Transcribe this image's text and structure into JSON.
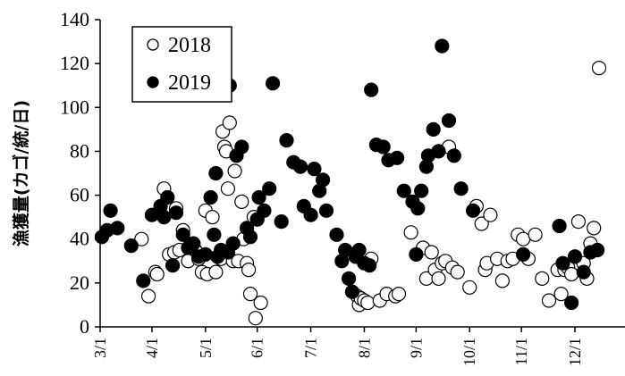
{
  "chart_data": {
    "type": "scatter",
    "title": "",
    "xlabel": "",
    "ylabel": "漁獲量(カゴ/統/日)",
    "ylim": [
      0,
      140
    ],
    "xlim": [
      "3/1",
      "12/30"
    ],
    "yticks": [
      "0",
      "20",
      "40",
      "60",
      "80",
      "100",
      "120",
      "140"
    ],
    "xticks": [
      "3/1",
      "4/1",
      "5/1",
      "6/1",
      "7/1",
      "8/1",
      "9/1",
      "10/1",
      "11/1",
      "12/1"
    ],
    "grid": false,
    "legend_position": "top-left",
    "colors": {
      "2018": "#ffffff",
      "2019": "#000000",
      "stroke": "#000000"
    },
    "series": [
      {
        "name": "2018",
        "marker": "open-circle",
        "x": [
          "3/25",
          "3/29",
          "4/3",
          "4/4",
          "4/8",
          "4/11",
          "4/14",
          "4/15",
          "4/17",
          "4/19",
          "4/22",
          "4/26",
          "4/28",
          "4/30",
          "5/1",
          "5/2",
          "5/5",
          "5/7",
          "5/10",
          "5/11",
          "5/12",
          "5/13",
          "5/14",
          "5/15",
          "5/17",
          "5/18",
          "5/20",
          "5/22",
          "5/23",
          "5/25",
          "5/26",
          "5/27",
          "5/29",
          "5/30",
          "5/31",
          "6/3",
          "7/28",
          "7/29",
          "7/30",
          "8/1",
          "8/3",
          "8/5",
          "8/10",
          "8/14",
          "8/19",
          "8/21",
          "8/28",
          "9/5",
          "9/7",
          "9/10",
          "9/12",
          "9/14",
          "9/16",
          "9/18",
          "9/20",
          "9/22",
          "9/25",
          "10/1",
          "10/5",
          "10/8",
          "10/10",
          "10/11",
          "10/13",
          "10/17",
          "10/20",
          "10/23",
          "10/26",
          "10/29",
          "11/2",
          "11/5",
          "11/9",
          "11/13",
          "11/17",
          "11/22",
          "11/24",
          "11/26",
          "11/28",
          "11/30",
          "12/1",
          "12/3",
          "12/6",
          "12/8",
          "12/10",
          "12/12",
          "12/15"
        ],
        "y": [
          40,
          14,
          25,
          24,
          63,
          33,
          34,
          54,
          35,
          44,
          30,
          35,
          31,
          25,
          53,
          24,
          50,
          25,
          31,
          89,
          82,
          80,
          63,
          93,
          30,
          71,
          30,
          57,
          40,
          29,
          26,
          15,
          50,
          4,
          49,
          11,
          14,
          10,
          13,
          12,
          11,
          31,
          12,
          15,
          14,
          15,
          43,
          36,
          22,
          34,
          26,
          22,
          29,
          30,
          82,
          27,
          25,
          18,
          55,
          47,
          26,
          29,
          51,
          31,
          21,
          30,
          31,
          42,
          40,
          31,
          42,
          22,
          12,
          26,
          15,
          26,
          27,
          24,
          32,
          48,
          29,
          22,
          38,
          45,
          118
        ]
      },
      {
        "name": "2019",
        "marker": "filled-circle",
        "x": [
          "3/2",
          "3/5",
          "3/7",
          "3/11",
          "3/19",
          "3/26",
          "4/1",
          "4/6",
          "4/8",
          "4/10",
          "4/13",
          "4/15",
          "4/19",
          "4/22",
          "4/25",
          "4/28",
          "5/1",
          "5/4",
          "5/6",
          "5/7",
          "5/8",
          "5/10",
          "5/14",
          "5/15",
          "5/17",
          "5/19",
          "5/22",
          "5/25",
          "5/27",
          "5/31",
          "6/2",
          "6/5",
          "6/8",
          "6/10",
          "6/15",
          "6/18",
          "6/22",
          "6/26",
          "6/28",
          "7/1",
          "7/3",
          "7/6",
          "7/8",
          "7/10",
          "7/16",
          "7/19",
          "7/21",
          "7/23",
          "7/25",
          "7/27",
          "7/29",
          "8/1",
          "8/4",
          "8/5",
          "8/8",
          "8/12",
          "8/15",
          "8/20",
          "8/24",
          "8/29",
          "9/1",
          "9/2",
          "9/4",
          "9/7",
          "9/8",
          "9/11",
          "9/14",
          "9/16",
          "9/20",
          "9/23",
          "9/27",
          "10/3",
          "11/2",
          "11/23",
          "11/25",
          "11/30",
          "12/1",
          "12/6",
          "12/10",
          "12/14"
        ],
        "y": [
          41,
          44,
          53,
          45,
          37,
          21,
          51,
          55,
          50,
          59,
          28,
          52,
          42,
          36,
          38,
          32,
          33,
          59,
          42,
          70,
          32,
          35,
          34,
          110,
          38,
          78,
          82,
          45,
          41,
          49,
          59,
          53,
          63,
          111,
          48,
          85,
          75,
          73,
          55,
          51,
          72,
          62,
          67,
          53,
          42,
          30,
          35,
          22,
          16,
          32,
          35,
          29,
          28,
          108,
          83,
          82,
          76,
          77,
          62,
          57,
          33,
          54,
          62,
          73,
          78,
          90,
          80,
          128,
          94,
          78,
          63,
          53,
          33,
          46,
          29,
          11,
          32,
          25,
          34,
          35
        ]
      }
    ]
  }
}
